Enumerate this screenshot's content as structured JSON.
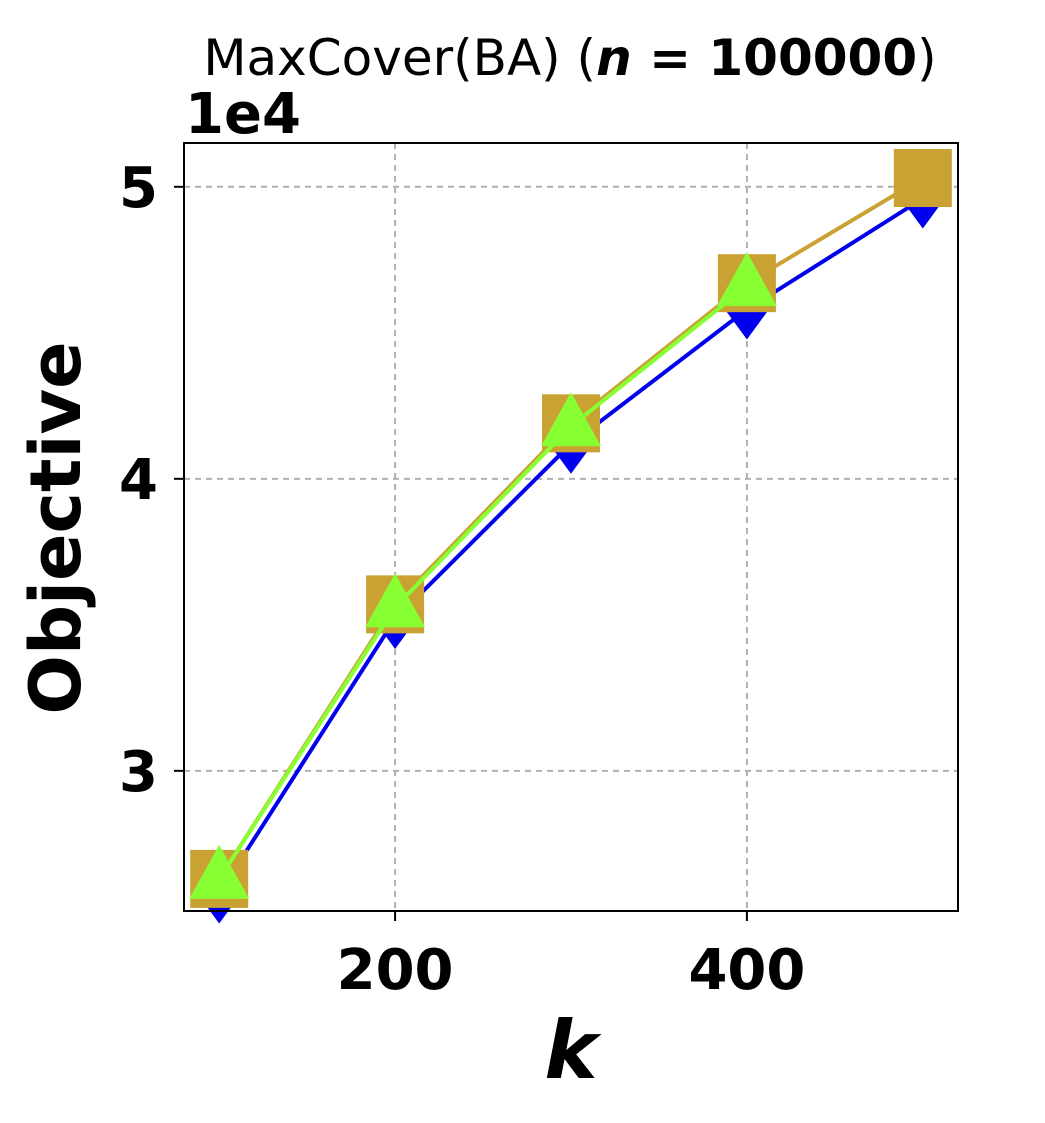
{
  "chart_data": {
    "type": "line",
    "title": {
      "prefix": "MaxCover(BA) (",
      "var": "n",
      "eq": " = 100000",
      "suffix": ")"
    },
    "xlabel": "k",
    "ylabel": "Objective",
    "y_offset_label": "1e4",
    "xlim": [
      80,
      520
    ],
    "ylim": [
      2.52,
      5.15
    ],
    "xticks": [
      200,
      400
    ],
    "xtick_labels": [
      "200",
      "400"
    ],
    "yticks": [
      3,
      4,
      5
    ],
    "ytick_labels": [
      "3",
      "4",
      "5"
    ],
    "grid": true,
    "x": [
      100,
      200,
      300,
      400,
      500
    ],
    "series": [
      {
        "color": "#0000ee",
        "marker": "diamond",
        "values": [
          2.58,
          3.52,
          4.12,
          4.58,
          4.96
        ]
      },
      {
        "color": "#c9a233",
        "marker": "square",
        "values": [
          2.63,
          3.57,
          4.19,
          4.67,
          5.03
        ]
      },
      {
        "color": "#88ff33",
        "marker": "triangle",
        "values": [
          2.63,
          3.56,
          4.18,
          4.66,
          null
        ]
      }
    ]
  }
}
